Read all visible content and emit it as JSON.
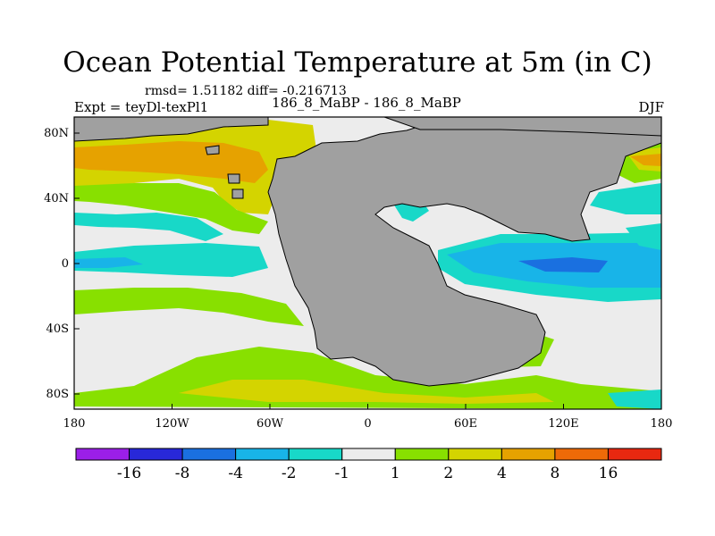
{
  "title": "Ocean Potential Temperature at 5m (in C)",
  "stats": "rmsd= 1.51182 diff= -0.216713",
  "expt": "Expt = teyDl-texPl1",
  "center_label": "186_8_MaBP - 186_8_MaBP",
  "season": "DJF",
  "map": {
    "lon_ticks": [
      "180",
      "120W",
      "60W",
      "0",
      "60E",
      "120E",
      "180"
    ],
    "lat_ticks": [
      "80N",
      "40N",
      "0",
      "40S",
      "80S"
    ],
    "land_color": "#a0a0a0"
  },
  "colorbar": {
    "colors": [
      "#9b1fe8",
      "#2828d8",
      "#1a70e0",
      "#18b4e8",
      "#18d8c8",
      "#ececec",
      "#88e000",
      "#d4d400",
      "#e6a200",
      "#ee6a08",
      "#e82810"
    ],
    "labels": [
      "-16",
      "-8",
      "-4",
      "-2",
      "-1",
      "1",
      "2",
      "4",
      "8",
      "16"
    ]
  }
}
